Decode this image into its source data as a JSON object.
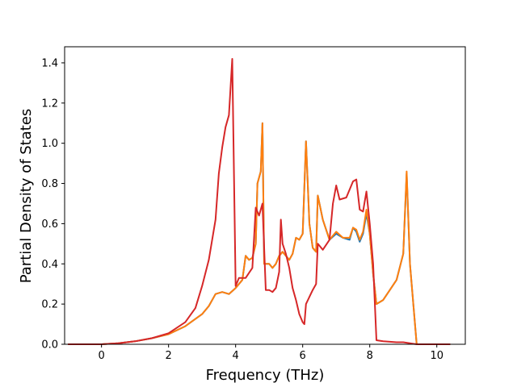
{
  "chart_data": {
    "type": "line",
    "title": "",
    "xlabel": "Frequency (THz)",
    "ylabel": "Partial Density of States",
    "xlim": [
      -1.1,
      10.85
    ],
    "ylim": [
      0.0,
      1.48
    ],
    "xticks": [
      0,
      2,
      4,
      6,
      8,
      10
    ],
    "xtick_labels": [
      "0",
      "2",
      "4",
      "6",
      "8",
      "10"
    ],
    "yticks": [
      0.0,
      0.2,
      0.4,
      0.6,
      0.8,
      1.0,
      1.2,
      1.4
    ],
    "ytick_labels": [
      "0.0",
      "0.2",
      "0.4",
      "0.6",
      "0.8",
      "1.0",
      "1.2",
      "1.4"
    ],
    "grid": false,
    "series": [
      {
        "color": "#1f77b4",
        "points": [
          [
            -1.0,
            0.0
          ],
          [
            0.0,
            0.0
          ],
          [
            0.5,
            0.005
          ],
          [
            1.0,
            0.015
          ],
          [
            1.5,
            0.03
          ],
          [
            2.0,
            0.05
          ],
          [
            2.5,
            0.09
          ],
          [
            3.0,
            0.15
          ],
          [
            3.2,
            0.19
          ],
          [
            3.4,
            0.25
          ],
          [
            3.6,
            0.26
          ],
          [
            3.8,
            0.25
          ],
          [
            4.0,
            0.28
          ],
          [
            4.2,
            0.32
          ],
          [
            4.3,
            0.44
          ],
          [
            4.4,
            0.42
          ],
          [
            4.5,
            0.43
          ],
          [
            4.6,
            0.5
          ],
          [
            4.65,
            0.8
          ],
          [
            4.75,
            0.86
          ],
          [
            4.8,
            1.1
          ],
          [
            4.85,
            0.4
          ],
          [
            5.0,
            0.4
          ],
          [
            5.1,
            0.38
          ],
          [
            5.2,
            0.4
          ],
          [
            5.3,
            0.44
          ],
          [
            5.4,
            0.46
          ],
          [
            5.6,
            0.42
          ],
          [
            5.7,
            0.45
          ],
          [
            5.8,
            0.53
          ],
          [
            5.9,
            0.52
          ],
          [
            6.0,
            0.55
          ],
          [
            6.1,
            1.01
          ],
          [
            6.2,
            0.6
          ],
          [
            6.3,
            0.48
          ],
          [
            6.4,
            0.46
          ],
          [
            6.45,
            0.74
          ],
          [
            6.6,
            0.62
          ],
          [
            6.8,
            0.52
          ],
          [
            7.0,
            0.55
          ],
          [
            7.2,
            0.53
          ],
          [
            7.4,
            0.52
          ],
          [
            7.5,
            0.58
          ],
          [
            7.6,
            0.56
          ],
          [
            7.7,
            0.51
          ],
          [
            7.8,
            0.55
          ],
          [
            7.9,
            0.65
          ],
          [
            8.0,
            0.55
          ],
          [
            8.1,
            0.35
          ],
          [
            8.2,
            0.2
          ],
          [
            8.4,
            0.22
          ],
          [
            8.6,
            0.27
          ],
          [
            8.8,
            0.32
          ],
          [
            9.0,
            0.45
          ],
          [
            9.1,
            0.85
          ],
          [
            9.2,
            0.4
          ],
          [
            9.4,
            0.0
          ],
          [
            10.4,
            0.0
          ]
        ]
      },
      {
        "color": "#ff7f0e",
        "points": [
          [
            -1.0,
            0.0
          ],
          [
            0.0,
            0.0
          ],
          [
            0.5,
            0.005
          ],
          [
            1.0,
            0.015
          ],
          [
            1.5,
            0.03
          ],
          [
            2.0,
            0.05
          ],
          [
            2.5,
            0.09
          ],
          [
            3.0,
            0.15
          ],
          [
            3.2,
            0.19
          ],
          [
            3.4,
            0.25
          ],
          [
            3.6,
            0.26
          ],
          [
            3.8,
            0.25
          ],
          [
            4.0,
            0.28
          ],
          [
            4.2,
            0.32
          ],
          [
            4.3,
            0.44
          ],
          [
            4.4,
            0.42
          ],
          [
            4.5,
            0.43
          ],
          [
            4.6,
            0.5
          ],
          [
            4.65,
            0.8
          ],
          [
            4.75,
            0.86
          ],
          [
            4.8,
            1.1
          ],
          [
            4.85,
            0.4
          ],
          [
            5.0,
            0.4
          ],
          [
            5.1,
            0.38
          ],
          [
            5.2,
            0.4
          ],
          [
            5.3,
            0.44
          ],
          [
            5.4,
            0.46
          ],
          [
            5.6,
            0.42
          ],
          [
            5.7,
            0.45
          ],
          [
            5.8,
            0.53
          ],
          [
            5.9,
            0.52
          ],
          [
            6.0,
            0.55
          ],
          [
            6.1,
            1.01
          ],
          [
            6.2,
            0.6
          ],
          [
            6.3,
            0.48
          ],
          [
            6.4,
            0.46
          ],
          [
            6.45,
            0.74
          ],
          [
            6.6,
            0.62
          ],
          [
            6.8,
            0.52
          ],
          [
            7.0,
            0.56
          ],
          [
            7.2,
            0.53
          ],
          [
            7.4,
            0.53
          ],
          [
            7.5,
            0.58
          ],
          [
            7.6,
            0.57
          ],
          [
            7.7,
            0.52
          ],
          [
            7.8,
            0.56
          ],
          [
            7.9,
            0.67
          ],
          [
            8.0,
            0.55
          ],
          [
            8.1,
            0.35
          ],
          [
            8.2,
            0.2
          ],
          [
            8.4,
            0.22
          ],
          [
            8.6,
            0.27
          ],
          [
            8.8,
            0.32
          ],
          [
            9.0,
            0.45
          ],
          [
            9.1,
            0.86
          ],
          [
            9.2,
            0.4
          ],
          [
            9.4,
            0.0
          ],
          [
            10.4,
            0.0
          ]
        ]
      },
      {
        "color": "#d62728",
        "points": [
          [
            -1.0,
            0.0
          ],
          [
            0.0,
            0.0
          ],
          [
            0.5,
            0.005
          ],
          [
            1.0,
            0.015
          ],
          [
            1.5,
            0.03
          ],
          [
            2.0,
            0.055
          ],
          [
            2.5,
            0.11
          ],
          [
            2.8,
            0.18
          ],
          [
            3.0,
            0.29
          ],
          [
            3.2,
            0.42
          ],
          [
            3.4,
            0.62
          ],
          [
            3.5,
            0.85
          ],
          [
            3.6,
            0.98
          ],
          [
            3.7,
            1.08
          ],
          [
            3.8,
            1.14
          ],
          [
            3.9,
            1.42
          ],
          [
            4.0,
            0.29
          ],
          [
            4.1,
            0.33
          ],
          [
            4.3,
            0.33
          ],
          [
            4.5,
            0.38
          ],
          [
            4.6,
            0.68
          ],
          [
            4.7,
            0.64
          ],
          [
            4.8,
            0.7
          ],
          [
            4.9,
            0.27
          ],
          [
            5.0,
            0.27
          ],
          [
            5.1,
            0.26
          ],
          [
            5.2,
            0.28
          ],
          [
            5.3,
            0.36
          ],
          [
            5.35,
            0.62
          ],
          [
            5.4,
            0.5
          ],
          [
            5.5,
            0.45
          ],
          [
            5.6,
            0.38
          ],
          [
            5.7,
            0.28
          ],
          [
            5.8,
            0.22
          ],
          [
            5.9,
            0.15
          ],
          [
            6.0,
            0.11
          ],
          [
            6.05,
            0.1
          ],
          [
            6.1,
            0.2
          ],
          [
            6.3,
            0.27
          ],
          [
            6.4,
            0.3
          ],
          [
            6.45,
            0.5
          ],
          [
            6.6,
            0.47
          ],
          [
            6.8,
            0.52
          ],
          [
            6.9,
            0.7
          ],
          [
            7.0,
            0.79
          ],
          [
            7.1,
            0.72
          ],
          [
            7.3,
            0.73
          ],
          [
            7.5,
            0.81
          ],
          [
            7.6,
            0.82
          ],
          [
            7.7,
            0.67
          ],
          [
            7.8,
            0.66
          ],
          [
            7.9,
            0.76
          ],
          [
            8.0,
            0.6
          ],
          [
            8.1,
            0.4
          ],
          [
            8.2,
            0.02
          ],
          [
            8.4,
            0.015
          ],
          [
            8.8,
            0.01
          ],
          [
            9.0,
            0.01
          ],
          [
            9.2,
            0.005
          ],
          [
            9.4,
            0.0
          ],
          [
            10.4,
            0.0
          ]
        ]
      }
    ]
  }
}
